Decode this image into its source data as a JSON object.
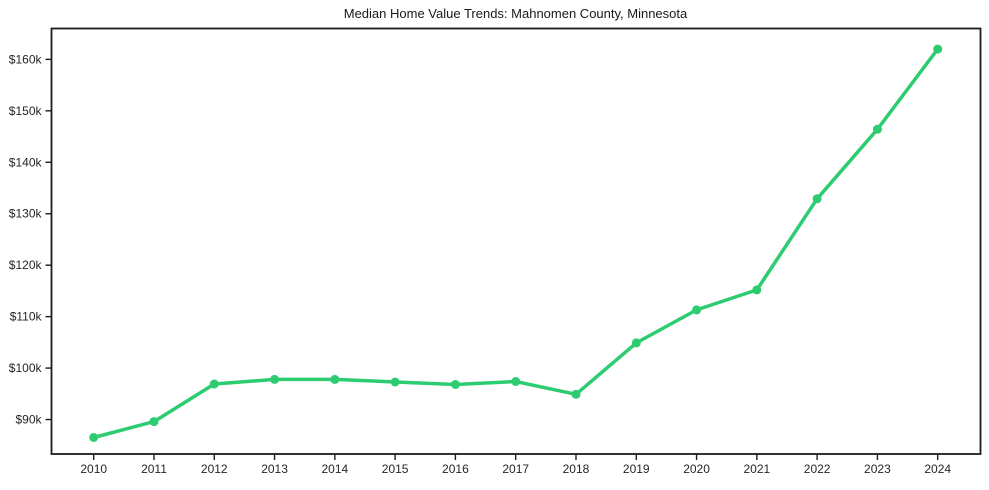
{
  "chart_data": {
    "type": "line",
    "title": "Median Home Value Trends: Mahnomen County, Minnesota",
    "xlabel": "",
    "ylabel": "",
    "categories": [
      "2010",
      "2011",
      "2012",
      "2013",
      "2014",
      "2015",
      "2016",
      "2017",
      "2018",
      "2019",
      "2020",
      "2021",
      "2022",
      "2023",
      "2024"
    ],
    "x": [
      2010,
      2011,
      2012,
      2013,
      2014,
      2015,
      2016,
      2017,
      2018,
      2019,
      2020,
      2021,
      2022,
      2023,
      2024
    ],
    "series": [
      {
        "name": "Median Home Value",
        "values": [
          86500,
          89600,
          96900,
          97800,
          97800,
          97300,
          96800,
          97400,
          94900,
          104900,
          111300,
          115200,
          132900,
          146400,
          162000
        ],
        "color": "#2ecc71",
        "marker": "circle"
      }
    ],
    "ytick_values": [
      90000,
      100000,
      110000,
      120000,
      130000,
      140000,
      150000,
      160000
    ],
    "ytick_labels": [
      "$90k",
      "$100k",
      "$110k",
      "$120k",
      "$130k",
      "$140k",
      "$150k",
      "$160k"
    ],
    "xlim": [
      2009.3,
      2024.71
    ],
    "ylim": [
      83300,
      166000
    ],
    "grid": false,
    "legend": "none",
    "background": "#ffffff"
  }
}
